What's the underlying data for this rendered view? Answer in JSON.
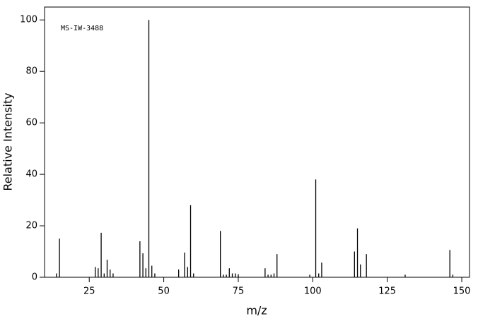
{
  "chart_data": {
    "type": "stem",
    "annotation": "MS-IW-3488",
    "xlabel": "m/z",
    "ylabel": "Relative Intensity",
    "color": "#000000",
    "x": [
      14,
      15,
      27,
      28,
      29,
      30,
      31,
      32,
      33,
      42,
      43,
      44,
      45,
      46,
      47,
      55,
      57,
      58,
      59,
      60,
      69,
      70,
      71,
      72,
      73,
      74,
      75,
      84,
      85,
      86,
      87,
      88,
      99,
      101,
      102,
      103,
      114,
      115,
      116,
      118,
      131,
      146,
      147
    ],
    "values": [
      1.5,
      15,
      4,
      3.5,
      17.3,
      1.5,
      6.8,
      3,
      1.5,
      14,
      9.3,
      3.5,
      100,
      4.5,
      1.5,
      3,
      9.6,
      4,
      28,
      1.5,
      18,
      1,
      1,
      3.5,
      1.5,
      1.5,
      1.2,
      3.5,
      1,
      1,
      1.5,
      9,
      1,
      38,
      1.5,
      5.7,
      10,
      19,
      5,
      9,
      1,
      10.6,
      1
    ],
    "xlim": [
      10,
      152.6
    ],
    "ylim": [
      0,
      105
    ],
    "xticks": [
      25,
      50,
      75,
      100,
      125,
      150
    ],
    "yticks": [
      0,
      20,
      40,
      60,
      80,
      100
    ]
  }
}
